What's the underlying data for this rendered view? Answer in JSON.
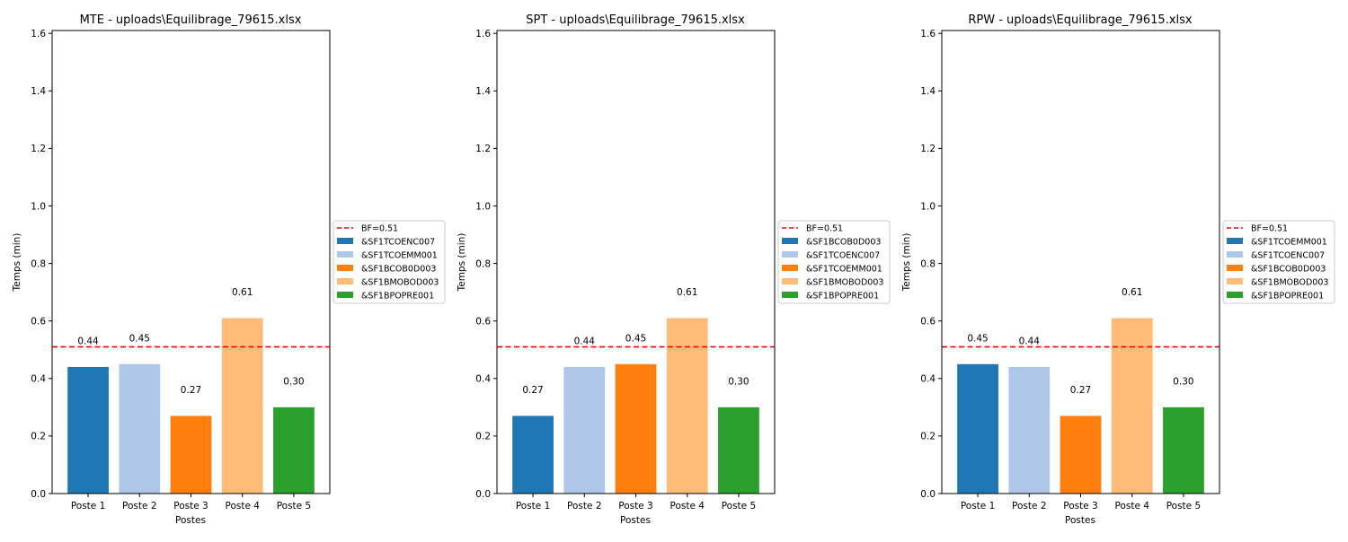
{
  "figure": {
    "charts": [
      {
        "title": "MTE - uploads\\Equilibrage_79615.xlsx",
        "xlabel": "Postes",
        "ylabel": "Temps (min)",
        "bf_label": "BF=0.51",
        "value_labels": [
          "0.44",
          "0.45",
          "0.27",
          "0.61",
          "0.30"
        ],
        "legend": [
          "&SF1TCOENC007",
          "&SF1TCOEMM001",
          "&SF1BCOB0D003",
          "&SF1BMOBOD003",
          "&SF1BPOPRE001"
        ]
      },
      {
        "title": "SPT - uploads\\Equilibrage_79615.xlsx",
        "xlabel": "Postes",
        "ylabel": "Temps (min)",
        "bf_label": "BF=0.51",
        "value_labels": [
          "0.27",
          "0.44",
          "0.45",
          "0.61",
          "0.30"
        ],
        "legend": [
          "&SF1BCOB0D003",
          "&SF1TCOENC007",
          "&SF1TCOEMM001",
          "&SF1BMOBOD003",
          "&SF1BPOPRE001"
        ]
      },
      {
        "title": "RPW - uploads\\Equilibrage_79615.xlsx",
        "xlabel": "Postes",
        "ylabel": "Temps (min)",
        "bf_label": "BF=0.51",
        "value_labels": [
          "0.45",
          "0.44",
          "0.27",
          "0.61",
          "0.30"
        ],
        "legend": [
          "&SF1TCOEMM001",
          "&SF1TCOENC007",
          "&SF1BCOB0D003",
          "&SF1BMOBOD003",
          "&SF1BPOPRE001"
        ]
      }
    ],
    "yticks": [
      "0.0",
      "0.2",
      "0.4",
      "0.6",
      "0.8",
      "1.0",
      "1.2",
      "1.4",
      "1.6"
    ]
  },
  "chart_data": [
    {
      "type": "bar",
      "title": "MTE - uploads\\Equilibrage_79615.xlsx",
      "xlabel": "Postes",
      "ylabel": "Temps (min)",
      "categories": [
        "Poste 1",
        "Poste 2",
        "Poste 3",
        "Poste 4",
        "Poste 5"
      ],
      "values": [
        0.44,
        0.45,
        0.27,
        0.61,
        0.3
      ],
      "series_names": [
        "&SF1TCOENC007",
        "&SF1TCOEMM001",
        "&SF1BCOB0D003",
        "&SF1BMOBOD003",
        "&SF1BPOPRE001"
      ],
      "colors": [
        "#1f77b4",
        "#aec7e8",
        "#ff7f0e",
        "#ffbb78",
        "#2ca02c"
      ],
      "reference_line": {
        "label": "BF=0.51",
        "value": 0.51,
        "color": "#ff0000",
        "style": "dashed"
      },
      "ylim": [
        0,
        1.61
      ],
      "legend_position": "outside-right",
      "grid": false
    },
    {
      "type": "bar",
      "title": "SPT - uploads\\Equilibrage_79615.xlsx",
      "xlabel": "Postes",
      "ylabel": "Temps (min)",
      "categories": [
        "Poste 1",
        "Poste 2",
        "Poste 3",
        "Poste 4",
        "Poste 5"
      ],
      "values": [
        0.27,
        0.44,
        0.45,
        0.61,
        0.3
      ],
      "series_names": [
        "&SF1BCOB0D003",
        "&SF1TCOENC007",
        "&SF1TCOEMM001",
        "&SF1BMOBOD003",
        "&SF1BPOPRE001"
      ],
      "colors": [
        "#1f77b4",
        "#aec7e8",
        "#ff7f0e",
        "#ffbb78",
        "#2ca02c"
      ],
      "reference_line": {
        "label": "BF=0.51",
        "value": 0.51,
        "color": "#ff0000",
        "style": "dashed"
      },
      "ylim": [
        0,
        1.61
      ],
      "legend_position": "outside-right",
      "grid": false
    },
    {
      "type": "bar",
      "title": "RPW - uploads\\Equilibrage_79615.xlsx",
      "xlabel": "Postes",
      "ylabel": "Temps (min)",
      "categories": [
        "Poste 1",
        "Poste 2",
        "Poste 3",
        "Poste 4",
        "Poste 5"
      ],
      "values": [
        0.45,
        0.44,
        0.27,
        0.61,
        0.3
      ],
      "series_names": [
        "&SF1TCOEMM001",
        "&SF1TCOENC007",
        "&SF1BCOB0D003",
        "&SF1BMOBOD003",
        "&SF1BPOPRE001"
      ],
      "colors": [
        "#1f77b4",
        "#aec7e8",
        "#ff7f0e",
        "#ffbb78",
        "#2ca02c"
      ],
      "reference_line": {
        "label": "BF=0.51",
        "value": 0.51,
        "color": "#ff0000",
        "style": "dashed"
      },
      "ylim": [
        0,
        1.61
      ],
      "legend_position": "outside-right",
      "grid": false
    }
  ]
}
